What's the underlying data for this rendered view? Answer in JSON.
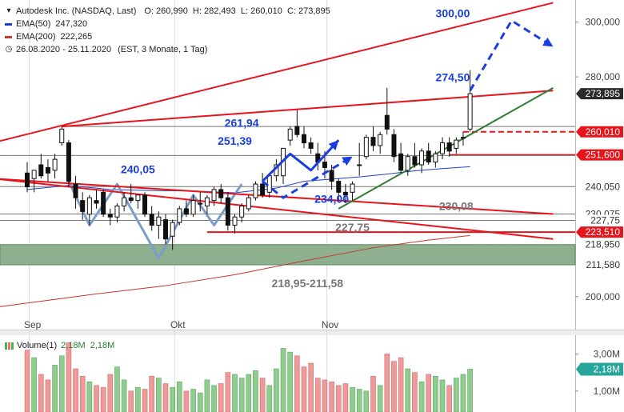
{
  "header": {
    "instrument": "Autodesk Inc. (NASDAQ, Last)",
    "ohlc": "O: 260,990  H: 282,493  L: 260,010  C: 273,895",
    "ema50_label": "EMA(50)",
    "ema50_value": "247,320",
    "ema200_label": "EMA(200)",
    "ema200_value": "222,265",
    "period": "26.08.2020 - 25.11.2020",
    "period_note": "(EST, 3 Monate, 1 Tag)"
  },
  "colors": {
    "up": "#ffffff",
    "down": "#111111",
    "ema50": "#1f3fd1",
    "ema200": "#c0392b",
    "resistance": "#e8141b",
    "support": "#2e7d32",
    "zone": "#8fb08f",
    "pattern": "#7b9ec8",
    "projection": "#1a3fe0",
    "vol_up": "#8fcc8f",
    "vol_down": "#ee9a9a",
    "axis_badge_price": "#2b2b2b",
    "axis_badge_red": "#e8141b",
    "axis_badge_vol": "#26a69a"
  },
  "volume": {
    "label": "Volume(1)",
    "value1": "2,18M",
    "value2": "2,18M",
    "ticks": [
      {
        "label": "3,00M",
        "value": 3000000
      },
      {
        "label": "1,00M",
        "value": 1000000
      }
    ],
    "badge": {
      "label": "2,18M",
      "value": 2180000
    }
  },
  "chart_data": {
    "type": "candlestick",
    "y_axis": {
      "min": 188,
      "max": 308,
      "ticks": [
        {
          "label": "300,000",
          "value": 300
        },
        {
          "label": "280,000",
          "value": 280
        },
        {
          "label": "200,000",
          "value": 200
        }
      ],
      "badges": [
        {
          "label": "273,895",
          "value": 273.895,
          "style": "dark"
        },
        {
          "label": "260,010",
          "value": 260.01,
          "style": "red"
        },
        {
          "label": "251,600",
          "value": 251.6,
          "style": "red"
        },
        {
          "label": "240,050",
          "value": 240.05,
          "style": "plain"
        },
        {
          "label": "230,075",
          "value": 230.075,
          "style": "plain"
        },
        {
          "label": "227,75",
          "value": 227.75,
          "style": "plain"
        },
        {
          "label": "223,510",
          "value": 223.51,
          "style": "red"
        },
        {
          "label": "218,950",
          "value": 218.95,
          "style": "plain"
        },
        {
          "label": "211,580",
          "value": 211.58,
          "style": "plain"
        }
      ]
    },
    "x_axis": {
      "labels": [
        {
          "label": "Sep",
          "index": 1
        },
        {
          "label": "Okt",
          "index": 22
        },
        {
          "label": "Nov",
          "index": 44
        }
      ]
    },
    "candles": [
      {
        "o": 245,
        "h": 249,
        "l": 238,
        "c": 240
      },
      {
        "o": 243,
        "h": 246,
        "l": 238,
        "c": 246
      },
      {
        "o": 248,
        "h": 252,
        "l": 243,
        "c": 244
      },
      {
        "o": 247,
        "h": 250,
        "l": 242,
        "c": 245
      },
      {
        "o": 246,
        "h": 252,
        "l": 243,
        "c": 250
      },
      {
        "o": 256,
        "h": 262,
        "l": 255,
        "c": 261
      },
      {
        "o": 256,
        "h": 257,
        "l": 240,
        "c": 242
      },
      {
        "o": 241,
        "h": 244,
        "l": 232,
        "c": 236
      },
      {
        "o": 235,
        "h": 238,
        "l": 228,
        "c": 231
      },
      {
        "o": 230,
        "h": 237,
        "l": 226,
        "c": 236
      },
      {
        "o": 235,
        "h": 239,
        "l": 232,
        "c": 234
      },
      {
        "o": 238,
        "h": 239,
        "l": 229,
        "c": 230
      },
      {
        "o": 230,
        "h": 232,
        "l": 226,
        "c": 229
      },
      {
        "o": 229,
        "h": 234,
        "l": 227,
        "c": 233
      },
      {
        "o": 233,
        "h": 238,
        "l": 231,
        "c": 236
      },
      {
        "o": 236,
        "h": 241,
        "l": 234,
        "c": 235
      },
      {
        "o": 235,
        "h": 237,
        "l": 232,
        "c": 237
      },
      {
        "o": 237,
        "h": 238,
        "l": 229,
        "c": 230
      },
      {
        "o": 230,
        "h": 233,
        "l": 224,
        "c": 226
      },
      {
        "o": 226,
        "h": 231,
        "l": 221,
        "c": 229
      },
      {
        "o": 228,
        "h": 230,
        "l": 219,
        "c": 221
      },
      {
        "o": 222,
        "h": 228,
        "l": 217,
        "c": 227
      },
      {
        "o": 227,
        "h": 233,
        "l": 226,
        "c": 232
      },
      {
        "o": 232,
        "h": 235,
        "l": 229,
        "c": 230
      },
      {
        "o": 230,
        "h": 237,
        "l": 229,
        "c": 235
      },
      {
        "o": 234,
        "h": 238,
        "l": 231,
        "c": 234
      },
      {
        "o": 233,
        "h": 237,
        "l": 230,
        "c": 236
      },
      {
        "o": 235,
        "h": 240,
        "l": 233,
        "c": 239
      },
      {
        "o": 239,
        "h": 241,
        "l": 234,
        "c": 236
      },
      {
        "o": 236,
        "h": 238,
        "l": 224,
        "c": 226
      },
      {
        "o": 226,
        "h": 230,
        "l": 223,
        "c": 229
      },
      {
        "o": 229,
        "h": 234,
        "l": 227,
        "c": 233
      },
      {
        "o": 232,
        "h": 237,
        "l": 231,
        "c": 236
      },
      {
        "o": 236,
        "h": 242,
        "l": 235,
        "c": 241
      },
      {
        "o": 241,
        "h": 245,
        "l": 236,
        "c": 237
      },
      {
        "o": 238,
        "h": 245,
        "l": 236,
        "c": 244
      },
      {
        "o": 244,
        "h": 250,
        "l": 242,
        "c": 248
      },
      {
        "o": 244,
        "h": 254,
        "l": 241,
        "c": 254
      },
      {
        "o": 257,
        "h": 262,
        "l": 255,
        "c": 261
      },
      {
        "o": 262,
        "h": 268,
        "l": 258,
        "c": 259
      },
      {
        "o": 259,
        "h": 262,
        "l": 254,
        "c": 256
      },
      {
        "o": 256,
        "h": 258,
        "l": 252,
        "c": 254
      },
      {
        "o": 252,
        "h": 256,
        "l": 246,
        "c": 249
      },
      {
        "o": 249,
        "h": 253,
        "l": 243,
        "c": 247
      },
      {
        "o": 246,
        "h": 248,
        "l": 239,
        "c": 242
      },
      {
        "o": 242,
        "h": 243,
        "l": 235,
        "c": 238
      },
      {
        "o": 238,
        "h": 241,
        "l": 234,
        "c": 237
      },
      {
        "o": 238,
        "h": 242,
        "l": 235,
        "c": 241
      },
      {
        "o": 248,
        "h": 256,
        "l": 244,
        "c": 248
      },
      {
        "o": 251,
        "h": 259,
        "l": 250,
        "c": 258
      },
      {
        "o": 258,
        "h": 262,
        "l": 253,
        "c": 255
      },
      {
        "o": 255,
        "h": 260,
        "l": 252,
        "c": 259
      },
      {
        "o": 266,
        "h": 276,
        "l": 259,
        "c": 261
      },
      {
        "o": 259,
        "h": 261,
        "l": 249,
        "c": 251
      },
      {
        "o": 252,
        "h": 256,
        "l": 245,
        "c": 246
      },
      {
        "o": 246,
        "h": 252,
        "l": 244,
        "c": 251
      },
      {
        "o": 251,
        "h": 256,
        "l": 247,
        "c": 248
      },
      {
        "o": 248,
        "h": 254,
        "l": 245,
        "c": 253
      },
      {
        "o": 253,
        "h": 256,
        "l": 248,
        "c": 249
      },
      {
        "o": 249,
        "h": 253,
        "l": 247,
        "c": 252
      },
      {
        "o": 252,
        "h": 258,
        "l": 250,
        "c": 256
      },
      {
        "o": 256,
        "h": 258,
        "l": 251,
        "c": 253
      },
      {
        "o": 254,
        "h": 258,
        "l": 252,
        "c": 257
      },
      {
        "o": 258,
        "h": 260,
        "l": 255,
        "c": 258
      },
      {
        "o": 260.99,
        "h": 282.49,
        "l": 260.01,
        "c": 273.895
      }
    ],
    "volumes": [
      3.2,
      2.8,
      1.9,
      1.6,
      2.4,
      2.9,
      3.6,
      2.2,
      1.8,
      1.5,
      1.3,
      1.2,
      1.9,
      2.3,
      1.6,
      1.0,
      1.2,
      1.1,
      1.8,
      1.7,
      1.4,
      1.2,
      1.5,
      1.0,
      1.1,
      0.9,
      1.6,
      1.3,
      1.4,
      2.0,
      1.9,
      1.7,
      1.9,
      2.1,
      1.7,
      1.3,
      2.2,
      3.3,
      3.1,
      2.9,
      2.3,
      2.5,
      1.7,
      1.6,
      1.5,
      1.3,
      1.4,
      1.2,
      1.1,
      1.0,
      1.8,
      1.3,
      3.0,
      2.6,
      2.8,
      2.2,
      2.0,
      1.5,
      1.9,
      1.8,
      1.6,
      1.3,
      1.7,
      1.9,
      2.18
    ],
    "ema50": [
      {
        "i": 0,
        "v": 239
      },
      {
        "i": 6,
        "v": 240.5
      },
      {
        "i": 12,
        "v": 239
      },
      {
        "i": 18,
        "v": 238.6
      },
      {
        "i": 24,
        "v": 238.5
      },
      {
        "i": 30,
        "v": 237.8
      },
      {
        "i": 36,
        "v": 239.5
      },
      {
        "i": 40,
        "v": 242
      },
      {
        "i": 44,
        "v": 242.8
      },
      {
        "i": 48,
        "v": 243.6
      },
      {
        "i": 52,
        "v": 244.6
      },
      {
        "i": 56,
        "v": 245.8
      },
      {
        "i": 60,
        "v": 246.6
      },
      {
        "i": 64,
        "v": 247.32
      }
    ],
    "ema200": [
      {
        "i": -5,
        "v": 196
      },
      {
        "i": 10,
        "v": 201
      },
      {
        "i": 20,
        "v": 204
      },
      {
        "i": 30,
        "v": 208
      },
      {
        "i": 40,
        "v": 213
      },
      {
        "i": 50,
        "v": 217.8
      },
      {
        "i": 58,
        "v": 220.6
      },
      {
        "i": 64,
        "v": 222.265
      }
    ],
    "lines": [
      {
        "name": "upper-channel",
        "color": "resistance",
        "width": 2,
        "from": {
          "i": -5,
          "v": 256
        },
        "to": {
          "i": 76,
          "v": 307
        }
      },
      {
        "name": "middle-resistance",
        "color": "resistance",
        "width": 2,
        "from": {
          "i": 5,
          "v": 261.94
        },
        "to": {
          "i": 76,
          "v": 275
        }
      },
      {
        "name": "lower-channel-1",
        "color": "resistance",
        "width": 2,
        "from": {
          "i": -5,
          "v": 243
        },
        "to": {
          "i": 76,
          "v": 230.08
        }
      },
      {
        "name": "lower-channel-2",
        "color": "resistance",
        "width": 2,
        "from": {
          "i": -5,
          "v": 243
        },
        "to": {
          "i": 76,
          "v": 221
        }
      },
      {
        "name": "support-trend",
        "color": "support",
        "width": 2,
        "from": {
          "i": 45,
          "v": 232
        },
        "to": {
          "i": 76,
          "v": 276
        }
      }
    ],
    "levels": [
      {
        "name": "level-260",
        "value": 260.01,
        "from_i": 63,
        "color": "resistance",
        "dashed": true,
        "width": 2
      },
      {
        "name": "level-251",
        "value": 251.6,
        "from_i": 61,
        "color": "resistance",
        "dashed": false,
        "width": 2
      },
      {
        "name": "level-223",
        "value": 223.51,
        "from_i": 26,
        "color": "resistance",
        "dashed": false,
        "width": 2
      },
      {
        "name": "level-261-gray",
        "value": 261.94,
        "from_i": 5,
        "color": "gray",
        "dashed": false,
        "width": 1
      },
      {
        "name": "level-251-gray",
        "value": 251.39,
        "from_i": -5,
        "color": "gray",
        "dashed": false,
        "width": 1
      },
      {
        "name": "level-240-gray",
        "value": 240.05,
        "from_i": -5,
        "color": "gray",
        "dashed": false,
        "width": 1
      },
      {
        "name": "level-230-gray",
        "value": 230.075,
        "from_i": -5,
        "color": "gray",
        "dashed": false,
        "width": 1
      },
      {
        "name": "level-227-gray",
        "value": 227.75,
        "from_i": -5,
        "color": "gray",
        "dashed": false,
        "width": 1
      }
    ],
    "zone": {
      "top": 218.95,
      "bottom": 211.58
    },
    "pattern": [
      {
        "i": 6,
        "v": 242
      },
      {
        "i": 9,
        "v": 226
      },
      {
        "i": 13,
        "v": 241
      },
      {
        "i": 19,
        "v": 214
      },
      {
        "i": 24,
        "v": 237
      },
      {
        "i": 27,
        "v": 226
      },
      {
        "i": 31,
        "v": 241
      }
    ],
    "projection_solid": [
      {
        "i": 34,
        "v": 242
      },
      {
        "i": 38,
        "v": 252
      },
      {
        "i": 41,
        "v": 246
      },
      {
        "i": 45,
        "v": 257
      }
    ],
    "projection_dashed_lower": [
      {
        "i": 34,
        "v": 242
      },
      {
        "i": 37,
        "v": 236
      },
      {
        "i": 47,
        "v": 251
      }
    ],
    "projection_dashed_upper": [
      {
        "i": 64,
        "v": 275
      },
      {
        "i": 70,
        "v": 300.5
      },
      {
        "i": 76,
        "v": 291
      }
    ],
    "annotations": [
      {
        "text": "300,00",
        "i": 61.5,
        "v": 301.8,
        "color": "projection"
      },
      {
        "text": "274,50",
        "i": 61.5,
        "v": 278.5,
        "color": "projection"
      },
      {
        "text": "261,94",
        "i": 31,
        "v": 261.9,
        "color": "projection"
      },
      {
        "text": "251,39",
        "i": 30,
        "v": 255.3,
        "color": "projection"
      },
      {
        "text": "240,05",
        "i": 16,
        "v": 245,
        "color": "projection"
      },
      {
        "text": "234,00",
        "i": 44,
        "v": 234.2,
        "color": "projection"
      },
      {
        "text": "230,08",
        "i": 62,
        "v": 231.6,
        "color": "gray"
      },
      {
        "text": "227,75",
        "i": 47,
        "v": 223.8,
        "color": "gray"
      },
      {
        "text": "218,95-211,58",
        "i": 40.5,
        "v": 203.5,
        "color": "gray"
      }
    ]
  }
}
